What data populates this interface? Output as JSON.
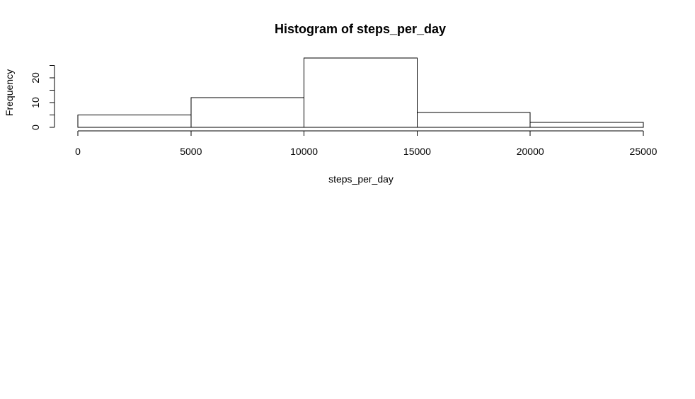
{
  "chart_data": {
    "type": "bar",
    "subtype": "histogram",
    "title": "Histogram of steps_per_day",
    "xlabel": "steps_per_day",
    "ylabel": "Frequency",
    "bins": [
      {
        "from": 0,
        "to": 5000,
        "count": 5
      },
      {
        "from": 5000,
        "to": 10000,
        "count": 12
      },
      {
        "from": 10000,
        "to": 15000,
        "count": 28
      },
      {
        "from": 15000,
        "to": 20000,
        "count": 6
      },
      {
        "from": 20000,
        "to": 25000,
        "count": 2
      }
    ],
    "xlim": [
      0,
      25000
    ],
    "ylim": [
      0,
      28
    ],
    "x_ticks": [
      0,
      5000,
      10000,
      15000,
      20000,
      25000
    ],
    "x_tick_labels": [
      "0",
      "5000",
      "10000",
      "15000",
      "20000",
      "25000"
    ],
    "y_ticks": [
      0,
      5,
      10,
      15,
      20,
      25
    ],
    "y_tick_labels": [
      "0",
      "",
      "10",
      "",
      "20",
      ""
    ],
    "grid": false,
    "bar_fill": "#ffffff",
    "bar_stroke": "#000000"
  }
}
